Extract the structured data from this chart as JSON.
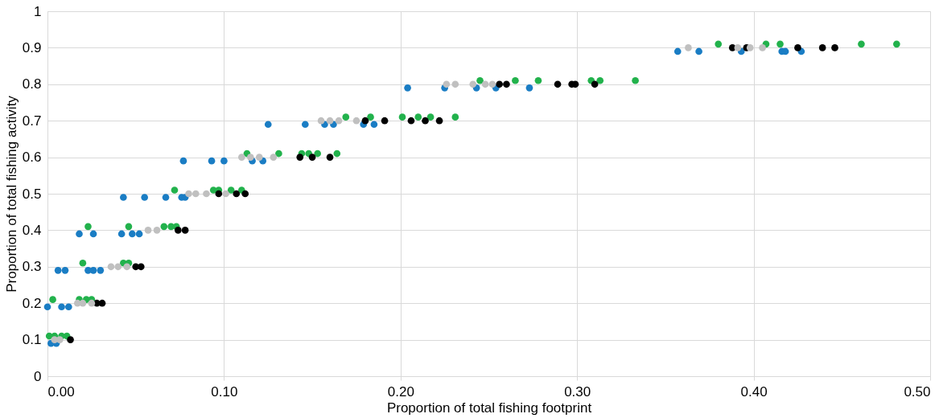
{
  "chart_data": {
    "type": "scatter",
    "xlabel": "Proportion of total fishing footprint",
    "ylabel": "Proportion of total fishing activity",
    "xlim": [
      0,
      0.5
    ],
    "ylim": [
      0,
      1
    ],
    "xticks": [
      {
        "value": 0,
        "label": "0.00"
      },
      {
        "value": 0.1,
        "label": "0.10"
      },
      {
        "value": 0.2,
        "label": "0.20"
      },
      {
        "value": 0.3,
        "label": "0.30"
      },
      {
        "value": 0.4,
        "label": "0.40"
      },
      {
        "value": 0.5,
        "label": "0.50"
      }
    ],
    "yticks": [
      0,
      0.1,
      0.2,
      0.3,
      0.4,
      0.5,
      0.6,
      0.7,
      0.8,
      0.9,
      1
    ],
    "grid": true,
    "legend": false,
    "marker": "circle",
    "series": [
      {
        "color": "#1a7dc4",
        "x": [
          0.002,
          0.005,
          0.0,
          0.008,
          0.012,
          0.006,
          0.01,
          0.023,
          0.026,
          0.03,
          0.018,
          0.026,
          0.042,
          0.048,
          0.052,
          0.043,
          0.055,
          0.067,
          0.076,
          0.078,
          0.077,
          0.093,
          0.1,
          0.116,
          0.122,
          0.125,
          0.146,
          0.157,
          0.162,
          0.179,
          0.185,
          0.204,
          0.225,
          0.243,
          0.254,
          0.273,
          0.357,
          0.369,
          0.393,
          0.416,
          0.418,
          0.427
        ],
        "values": [
          0.09,
          0.09,
          0.19,
          0.19,
          0.19,
          0.29,
          0.29,
          0.29,
          0.29,
          0.29,
          0.39,
          0.39,
          0.39,
          0.39,
          0.39,
          0.49,
          0.49,
          0.49,
          0.49,
          0.49,
          0.59,
          0.59,
          0.59,
          0.59,
          0.59,
          0.69,
          0.69,
          0.69,
          0.69,
          0.69,
          0.69,
          0.79,
          0.79,
          0.79,
          0.79,
          0.79,
          0.89,
          0.89,
          0.89,
          0.89,
          0.89,
          0.89
        ]
      },
      {
        "color": "#22b24c",
        "x": [
          0.001,
          0.004,
          0.008,
          0.011,
          0.003,
          0.018,
          0.022,
          0.025,
          0.02,
          0.043,
          0.046,
          0.023,
          0.046,
          0.066,
          0.07,
          0.073,
          0.072,
          0.094,
          0.097,
          0.104,
          0.11,
          0.113,
          0.131,
          0.144,
          0.148,
          0.153,
          0.164,
          0.169,
          0.183,
          0.201,
          0.21,
          0.217,
          0.231,
          0.245,
          0.265,
          0.278,
          0.308,
          0.313,
          0.333,
          0.38,
          0.407,
          0.415,
          0.461,
          0.481
        ],
        "values": [
          0.11,
          0.11,
          0.11,
          0.11,
          0.21,
          0.21,
          0.21,
          0.21,
          0.31,
          0.31,
          0.31,
          0.41,
          0.41,
          0.41,
          0.41,
          0.41,
          0.51,
          0.51,
          0.51,
          0.51,
          0.51,
          0.61,
          0.61,
          0.61,
          0.61,
          0.61,
          0.61,
          0.71,
          0.71,
          0.71,
          0.71,
          0.71,
          0.71,
          0.81,
          0.81,
          0.81,
          0.81,
          0.81,
          0.81,
          0.91,
          0.91,
          0.91,
          0.91,
          0.91
        ]
      },
      {
        "color": "#000000",
        "x": [
          0.013,
          0.028,
          0.031,
          0.05,
          0.053,
          0.074,
          0.078,
          0.097,
          0.107,
          0.112,
          0.143,
          0.15,
          0.16,
          0.18,
          0.191,
          0.206,
          0.214,
          0.222,
          0.256,
          0.26,
          0.289,
          0.297,
          0.299,
          0.31,
          0.388,
          0.396,
          0.425,
          0.439,
          0.446
        ],
        "values": [
          0.1,
          0.2,
          0.2,
          0.3,
          0.3,
          0.4,
          0.4,
          0.5,
          0.5,
          0.5,
          0.6,
          0.6,
          0.6,
          0.7,
          0.7,
          0.7,
          0.7,
          0.7,
          0.8,
          0.8,
          0.8,
          0.8,
          0.8,
          0.8,
          0.9,
          0.9,
          0.9,
          0.9,
          0.9
        ]
      },
      {
        "color": "#c0c0c0",
        "x": [
          0.004,
          0.007,
          0.017,
          0.02,
          0.025,
          0.036,
          0.04,
          0.045,
          0.057,
          0.062,
          0.08,
          0.084,
          0.09,
          0.101,
          0.11,
          0.115,
          0.12,
          0.128,
          0.155,
          0.16,
          0.165,
          0.175,
          0.226,
          0.231,
          0.241,
          0.248,
          0.252,
          0.363,
          0.391,
          0.398,
          0.405
        ],
        "values": [
          0.1,
          0.1,
          0.2,
          0.2,
          0.2,
          0.3,
          0.3,
          0.3,
          0.4,
          0.4,
          0.5,
          0.5,
          0.5,
          0.5,
          0.6,
          0.6,
          0.6,
          0.6,
          0.7,
          0.7,
          0.7,
          0.7,
          0.8,
          0.8,
          0.8,
          0.8,
          0.8,
          0.9,
          0.9,
          0.9,
          0.9
        ]
      }
    ]
  }
}
